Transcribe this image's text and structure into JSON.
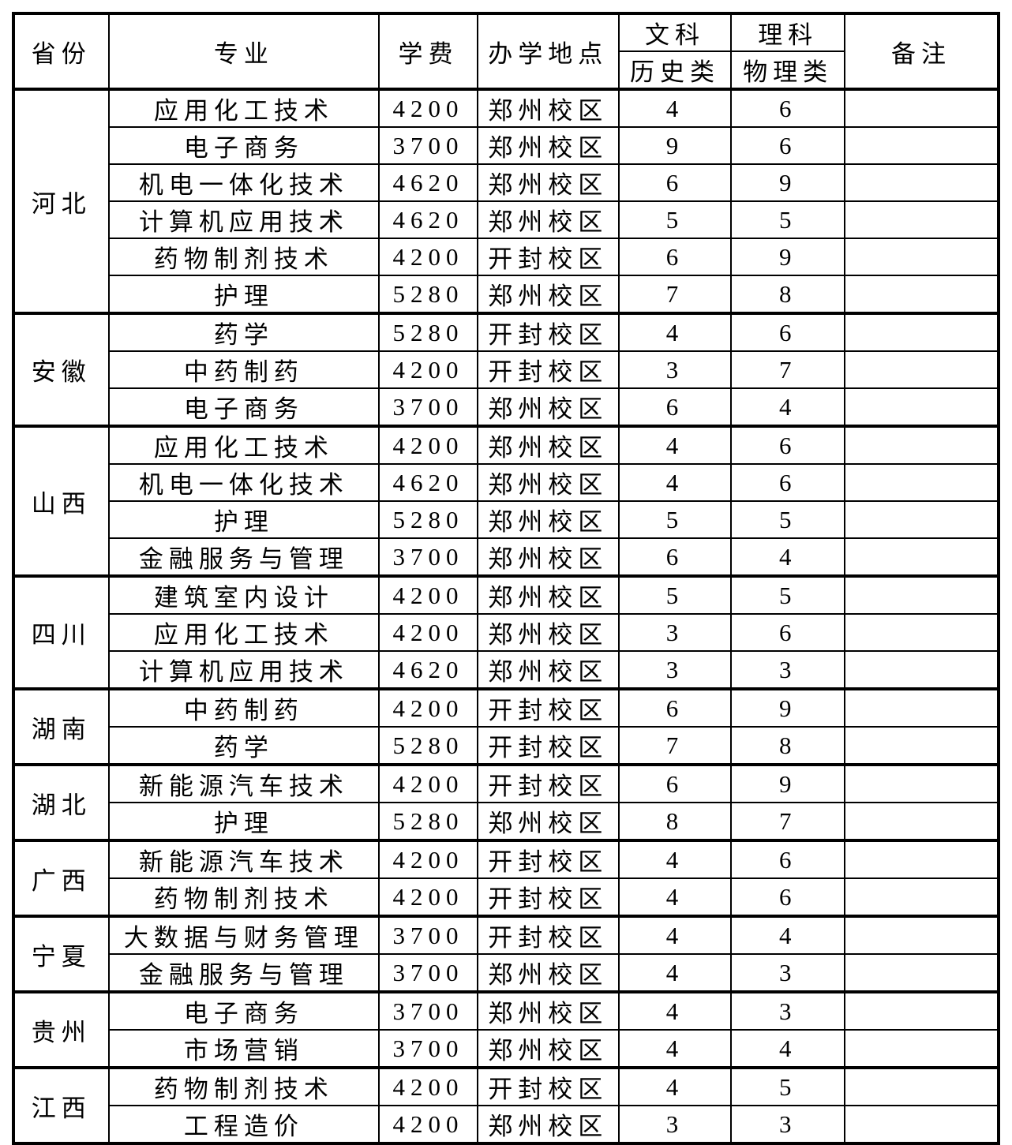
{
  "table": {
    "header": {
      "province": "省份",
      "major": "专业",
      "tuition": "学费",
      "campus": "办学地点",
      "arts": "文科",
      "arts_sub": "历史类",
      "science": "理科",
      "science_sub": "物理类",
      "remark": "备注"
    },
    "groups": [
      {
        "province": "河北",
        "rows": [
          {
            "major": "应用化工技术",
            "tuition": "4200",
            "campus": "郑州校区",
            "arts": "4",
            "science": "6",
            "remark": ""
          },
          {
            "major": "电子商务",
            "tuition": "3700",
            "campus": "郑州校区",
            "arts": "9",
            "science": "6",
            "remark": ""
          },
          {
            "major": "机电一体化技术",
            "tuition": "4620",
            "campus": "郑州校区",
            "arts": "6",
            "science": "9",
            "remark": ""
          },
          {
            "major": "计算机应用技术",
            "tuition": "4620",
            "campus": "郑州校区",
            "arts": "5",
            "science": "5",
            "remark": ""
          },
          {
            "major": "药物制剂技术",
            "tuition": "4200",
            "campus": "开封校区",
            "arts": "6",
            "science": "9",
            "remark": ""
          },
          {
            "major": "护理",
            "tuition": "5280",
            "campus": "郑州校区",
            "arts": "7",
            "science": "8",
            "remark": ""
          }
        ]
      },
      {
        "province": "安徽",
        "rows": [
          {
            "major": "药学",
            "tuition": "5280",
            "campus": "开封校区",
            "arts": "4",
            "science": "6",
            "remark": ""
          },
          {
            "major": "中药制药",
            "tuition": "4200",
            "campus": "开封校区",
            "arts": "3",
            "science": "7",
            "remark": ""
          },
          {
            "major": "电子商务",
            "tuition": "3700",
            "campus": "郑州校区",
            "arts": "6",
            "science": "4",
            "remark": ""
          }
        ]
      },
      {
        "province": "山西",
        "rows": [
          {
            "major": "应用化工技术",
            "tuition": "4200",
            "campus": "郑州校区",
            "arts": "4",
            "science": "6",
            "remark": ""
          },
          {
            "major": "机电一体化技术",
            "tuition": "4620",
            "campus": "郑州校区",
            "arts": "4",
            "science": "6",
            "remark": ""
          },
          {
            "major": "护理",
            "tuition": "5280",
            "campus": "郑州校区",
            "arts": "5",
            "science": "5",
            "remark": ""
          },
          {
            "major": "金融服务与管理",
            "tuition": "3700",
            "campus": "郑州校区",
            "arts": "6",
            "science": "4",
            "remark": ""
          }
        ]
      },
      {
        "province": "四川",
        "rows": [
          {
            "major": "建筑室内设计",
            "tuition": "4200",
            "campus": "郑州校区",
            "arts": "5",
            "science": "5",
            "remark": ""
          },
          {
            "major": "应用化工技术",
            "tuition": "4200",
            "campus": "郑州校区",
            "arts": "3",
            "science": "6",
            "remark": ""
          },
          {
            "major": "计算机应用技术",
            "tuition": "4620",
            "campus": "郑州校区",
            "arts": "3",
            "science": "3",
            "remark": ""
          }
        ]
      },
      {
        "province": "湖南",
        "rows": [
          {
            "major": "中药制药",
            "tuition": "4200",
            "campus": "开封校区",
            "arts": "6",
            "science": "9",
            "remark": ""
          },
          {
            "major": "药学",
            "tuition": "5280",
            "campus": "开封校区",
            "arts": "7",
            "science": "8",
            "remark": ""
          }
        ]
      },
      {
        "province": "湖北",
        "rows": [
          {
            "major": "新能源汽车技术",
            "tuition": "4200",
            "campus": "开封校区",
            "arts": "6",
            "science": "9",
            "remark": ""
          },
          {
            "major": "护理",
            "tuition": "5280",
            "campus": "郑州校区",
            "arts": "8",
            "science": "7",
            "remark": ""
          }
        ]
      },
      {
        "province": "广西",
        "rows": [
          {
            "major": "新能源汽车技术",
            "tuition": "4200",
            "campus": "开封校区",
            "arts": "4",
            "science": "6",
            "remark": ""
          },
          {
            "major": "药物制剂技术",
            "tuition": "4200",
            "campus": "开封校区",
            "arts": "4",
            "science": "6",
            "remark": ""
          }
        ]
      },
      {
        "province": "宁夏",
        "rows": [
          {
            "major": "大数据与财务管理",
            "tuition": "3700",
            "campus": "开封校区",
            "arts": "4",
            "science": "4",
            "remark": ""
          },
          {
            "major": "金融服务与管理",
            "tuition": "3700",
            "campus": "郑州校区",
            "arts": "4",
            "science": "3",
            "remark": ""
          }
        ]
      },
      {
        "province": "贵州",
        "rows": [
          {
            "major": "电子商务",
            "tuition": "3700",
            "campus": "郑州校区",
            "arts": "4",
            "science": "3",
            "remark": ""
          },
          {
            "major": "市场营销",
            "tuition": "3700",
            "campus": "郑州校区",
            "arts": "4",
            "science": "4",
            "remark": ""
          }
        ]
      },
      {
        "province": "江西",
        "rows": [
          {
            "major": "药物制剂技术",
            "tuition": "4200",
            "campus": "开封校区",
            "arts": "4",
            "science": "5",
            "remark": ""
          },
          {
            "major": "工程造价",
            "tuition": "4200",
            "campus": "郑州校区",
            "arts": "3",
            "science": "3",
            "remark": ""
          }
        ]
      }
    ]
  }
}
